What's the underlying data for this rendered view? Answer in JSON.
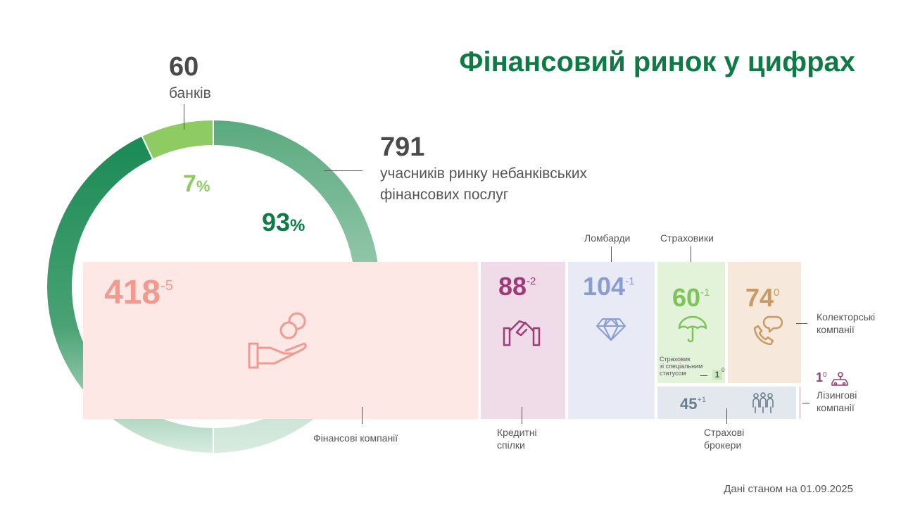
{
  "title": "Фінансовий ринок у цифрах",
  "banks": {
    "value": "60",
    "label": "банків",
    "percent": "7",
    "percent_sign": "%"
  },
  "nonbank": {
    "value": "791",
    "label_line1": "учасників ринку небанківських",
    "label_line2": "фінансових послуг",
    "percent": "93",
    "percent_sign": "%"
  },
  "chart_data": {
    "type": "pie",
    "categories": [
      "банків",
      "учасників ринку небанківських фінансових послуг"
    ],
    "values": [
      60,
      791
    ],
    "percentages": [
      7,
      93
    ],
    "colors": [
      "#8fcb63",
      "#1a8a55"
    ]
  },
  "segments": {
    "finance": {
      "value": "418",
      "change": "-5",
      "label": "Фінансові компанії",
      "color": "#f29a8f",
      "bg": "#fde8e5"
    },
    "credit": {
      "value": "88",
      "change": "-2",
      "label_line1": "Кредитні",
      "label_line2": "спілки",
      "color": "#9e3a76",
      "bg": "#f0dce8"
    },
    "pawn": {
      "value": "104",
      "change": "-1",
      "label": "Ломбарди",
      "color": "#8a9dd0",
      "bg": "#e8ebf6"
    },
    "insurers": {
      "value": "60",
      "change": "-1",
      "label": "Страховики",
      "color": "#7cc35a",
      "bg": "#e3f3da"
    },
    "special_insurer": {
      "value": "1",
      "change": "0",
      "label_line1": "Страховик",
      "label_line2": "зі спеціальним",
      "label_line3": "статусом"
    },
    "collectors": {
      "value": "74",
      "change": "0",
      "label_line1": "Колекторські",
      "label_line2": "компанії",
      "color": "#c99a63",
      "bg": "#f6e8da"
    },
    "brokers": {
      "value": "45",
      "change": "+1",
      "label_line1": "Страхові",
      "label_line2": "брокери",
      "color": "#6a7b8c",
      "bg": "#e3e8ee"
    },
    "leasing": {
      "value": "1",
      "change": "0",
      "label_line1": "Лізингові",
      "label_line2": "компанії",
      "color": "#9e3a76"
    }
  },
  "footnote": "Дані станом на 01.09.2025"
}
